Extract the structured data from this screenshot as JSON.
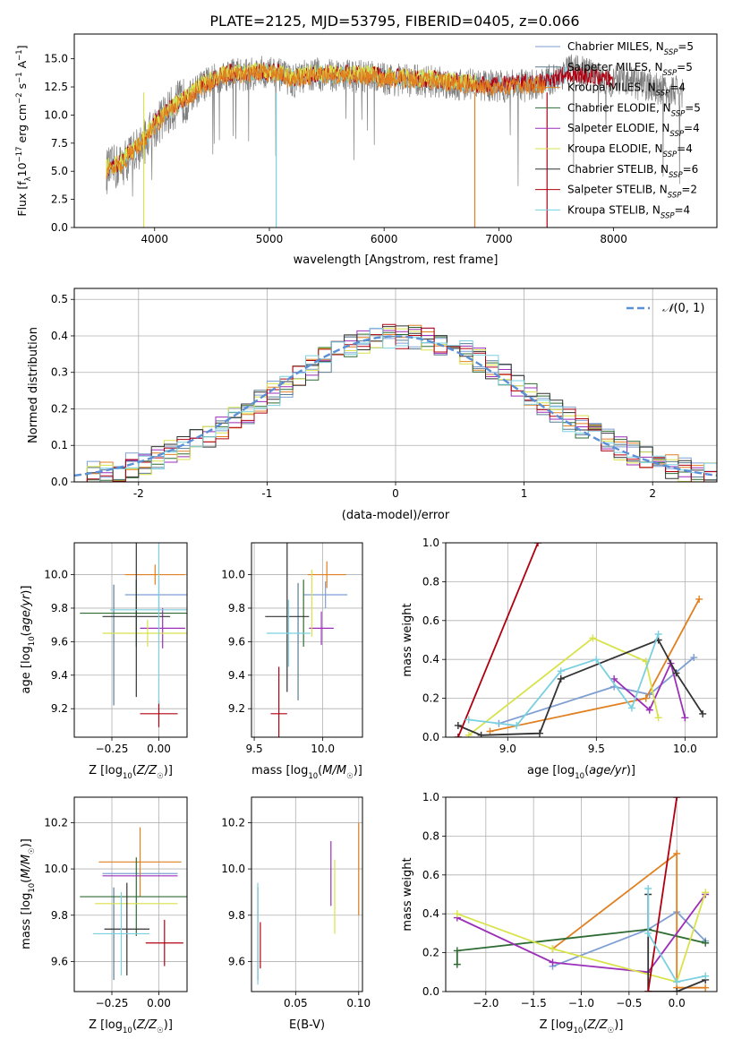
{
  "figure": {
    "title": "PLATE=2125, MJD=53795, FIBERID=0405, z=0.066"
  },
  "series_colors": {
    "Chabrier MILES": "#7f9fd3",
    "Salpeter MILES": "#5a7d92",
    "Kroupa MILES": "#e08020",
    "Chabrier ELODIE": "#2e6b33",
    "Salpeter ELODIE": "#9c2fb8",
    "Kroupa ELODIE": "#d8e24a",
    "Chabrier STELIB": "#333333",
    "Salpeter STELIB": "#b00010",
    "Kroupa STELIB": "#7ad0e0"
  },
  "chart_data": [
    {
      "id": "spectrum",
      "type": "line",
      "title": "PLATE=2125, MJD=53795, FIBERID=0405, z=0.066",
      "xlabel": "wavelength [Angstrom, rest frame]",
      "ylabel": "Flux [f_λ10^{-17} erg cm^{-2} s^{-1} A^{-1}]",
      "xlim": [
        3300,
        8900
      ],
      "ylim": [
        0,
        17.2
      ],
      "xticks": [
        4000,
        5000,
        6000,
        7000,
        8000
      ],
      "yticks": [
        0.0,
        2.5,
        5.0,
        7.5,
        10.0,
        12.5,
        15.0
      ],
      "legend_position": "top-right",
      "legend": [
        {
          "label": "Chabrier MILES, N_SSP=5",
          "text": "Chabrier MILES, N",
          "sub": "SSP",
          "tail": "=5"
        },
        {
          "label": "Salpeter MILES, N_SSP=5",
          "text": "Salpeter MILES, N",
          "sub": "SSP",
          "tail": "=5"
        },
        {
          "label": "Kroupa MILES, N_SSP=4",
          "text": "Kroupa MILES, N",
          "sub": "SSP",
          "tail": "=4"
        },
        {
          "label": "Chabrier ELODIE, N_SSP=5",
          "text": "Chabrier ELODIE, N",
          "sub": "SSP",
          "tail": "=5"
        },
        {
          "label": "Salpeter ELODIE, N_SSP=4",
          "text": "Salpeter ELODIE, N",
          "sub": "SSP",
          "tail": "=4"
        },
        {
          "label": "Kroupa ELODIE, N_SSP=4",
          "text": "Kroupa ELODIE, N",
          "sub": "SSP",
          "tail": "=4"
        },
        {
          "label": "Chabrier STELIB, N_SSP=6",
          "text": "Chabrier STELIB, N",
          "sub": "SSP",
          "tail": "=6"
        },
        {
          "label": "Salpeter STELIB, N_SSP=2",
          "text": "Salpeter STELIB, N",
          "sub": "SSP",
          "tail": "=2"
        },
        {
          "label": "Kroupa STELIB, N_SSP=4",
          "text": "Kroupa STELIB, N",
          "sub": "SSP",
          "tail": "=4"
        }
      ],
      "observed_envelope": {
        "x": [
          3580,
          3700,
          3800,
          3900,
          4000,
          4100,
          4200,
          4300,
          4400,
          4500,
          4600,
          4700,
          4800,
          4900,
          5000,
          5100,
          5200,
          5300,
          5400,
          5500,
          5600,
          5700,
          5800,
          5900,
          6000,
          6200,
          6400,
          6600,
          6800,
          7000,
          7200,
          7400,
          7600,
          7800,
          8000,
          8200,
          8400,
          8600
        ],
        "y": [
          5.0,
          5.5,
          6.5,
          7.5,
          9.0,
          10.0,
          11.0,
          11.5,
          12.5,
          13.0,
          13.5,
          13.8,
          13.5,
          13.8,
          13.8,
          13.5,
          13.0,
          13.4,
          13.6,
          13.5,
          13.6,
          13.5,
          13.4,
          13.4,
          13.2,
          13.1,
          13.0,
          12.8,
          12.7,
          12.5,
          12.6,
          12.8,
          14.0,
          13.6,
          13.0,
          12.8,
          12.3,
          12.0
        ]
      },
      "model_envelope": {
        "x": [
          3580,
          3700,
          3800,
          3900,
          4000,
          4100,
          4200,
          4300,
          4400,
          4500,
          4600,
          4700,
          4800,
          4900,
          5000,
          5100,
          5200,
          5300,
          5400,
          5500,
          5600,
          5700,
          5800,
          5900,
          6000,
          6200,
          6400,
          6600,
          6800,
          7000,
          7200,
          7400
        ],
        "y": [
          5.2,
          5.6,
          6.8,
          7.6,
          9.2,
          10.2,
          11.0,
          11.6,
          12.6,
          13.0,
          13.6,
          13.7,
          13.6,
          13.8,
          13.8,
          13.6,
          13.2,
          13.4,
          13.6,
          13.6,
          13.5,
          13.6,
          13.5,
          13.5,
          13.3,
          13.2,
          13.1,
          12.9,
          12.7,
          12.6,
          12.7,
          12.8
        ]
      }
    },
    {
      "id": "residual_histogram",
      "type": "bar",
      "xlabel": "(data-model)/error",
      "ylabel": "Normed distribution",
      "xlim": [
        -2.5,
        2.5
      ],
      "ylim": [
        0,
        0.53
      ],
      "xticks": [
        -2,
        -1,
        0,
        1,
        2
      ],
      "yticks": [
        0.0,
        0.1,
        0.2,
        0.3,
        0.4,
        0.5
      ],
      "reference_curve": {
        "name": "N(0,1)",
        "mu": 0,
        "sigma": 1
      },
      "bin_edges_start": -2.5,
      "bin_width": 0.1
    },
    {
      "id": "age_vs_Z",
      "type": "scatter",
      "xlabel": "Z [log10(Z/Z☉)]",
      "ylabel": "age  [log10(age/yr)]",
      "xlim": [
        -0.45,
        0.15
      ],
      "ylim": [
        9.03,
        10.19
      ],
      "xticks": [
        -0.25,
        0.0
      ],
      "yticks": [
        9.2,
        9.4,
        9.6,
        9.8,
        10.0
      ],
      "points": [
        {
          "series": "Chabrier MILES",
          "x": 0.0,
          "y": 9.88,
          "xerr": 0.18,
          "yerr": 0.1
        },
        {
          "series": "Salpeter MILES",
          "x": -0.24,
          "y": 9.58,
          "xerr": 0.0,
          "yerr": 0.36
        },
        {
          "series": "Kroupa MILES",
          "x": -0.02,
          "y": 10.0,
          "xerr": 0.16,
          "yerr": 0.06
        },
        {
          "series": "Chabrier ELODIE",
          "x": -0.12,
          "y": 9.77,
          "xerr": 0.3,
          "yerr": 0.2
        },
        {
          "series": "Salpeter ELODIE",
          "x": 0.02,
          "y": 9.68,
          "xerr": 0.12,
          "yerr": 0.12
        },
        {
          "series": "Kroupa ELODIE",
          "x": -0.06,
          "y": 9.65,
          "xerr": 0.24,
          "yerr": 0.08
        },
        {
          "series": "Chabrier STELIB",
          "x": -0.12,
          "y": 9.75,
          "xerr": 0.18,
          "yerr": 0.48
        },
        {
          "series": "Salpeter STELIB",
          "x": 0.0,
          "y": 9.17,
          "xerr": 0.1,
          "yerr": 0.08
        },
        {
          "series": "Kroupa STELIB",
          "x": 0.0,
          "y": 9.79,
          "xerr": 0.26,
          "yerr": 0.56
        }
      ]
    },
    {
      "id": "age_vs_mass",
      "type": "scatter",
      "xlabel": "mass [log10(M/M☉)]",
      "ylabel": "",
      "xlim": [
        9.48,
        10.29
      ],
      "ylim": [
        9.03,
        10.19
      ],
      "xticks": [
        9.5,
        10.0
      ],
      "yticks": [
        9.2,
        9.4,
        9.6,
        9.8,
        10.0
      ],
      "points": [
        {
          "series": "Chabrier MILES",
          "x": 10.02,
          "y": 9.88,
          "xerr": 0.16,
          "yerr": 0.08
        },
        {
          "series": "Salpeter MILES",
          "x": 9.82,
          "y": 9.6,
          "xerr": 0.0,
          "yerr": 0.35
        },
        {
          "series": "Kroupa MILES",
          "x": 10.03,
          "y": 10.0,
          "xerr": 0.14,
          "yerr": 0.08
        },
        {
          "series": "Chabrier ELODIE",
          "x": 9.86,
          "y": 9.77,
          "xerr": 0.0,
          "yerr": 0.2
        },
        {
          "series": "Salpeter ELODIE",
          "x": 9.99,
          "y": 9.68,
          "xerr": 0.09,
          "yerr": 0.1
        },
        {
          "series": "Kroupa ELODIE",
          "x": 9.92,
          "y": 9.83,
          "xerr": 0.0,
          "yerr": 0.2
        },
        {
          "series": "Chabrier STELIB",
          "x": 9.74,
          "y": 9.75,
          "xerr": 0.16,
          "yerr": 0.45
        },
        {
          "series": "Salpeter STELIB",
          "x": 9.68,
          "y": 9.17,
          "xerr": 0.06,
          "yerr": 0.28
        },
        {
          "series": "Kroupa STELIB",
          "x": 9.75,
          "y": 9.65,
          "xerr": 0.16,
          "yerr": 0.2
        }
      ]
    },
    {
      "id": "mass_weight_vs_age",
      "type": "line",
      "xlabel": "age  [log10(age/yr)]",
      "ylabel": "mass weight",
      "xlim": [
        8.65,
        10.18
      ],
      "ylim": [
        0,
        1.0
      ],
      "xticks": [
        9.0,
        9.5,
        10.0
      ],
      "yticks": [
        0.0,
        0.2,
        0.4,
        0.6,
        0.8,
        1.0
      ],
      "series": [
        {
          "name": "Chabrier MILES",
          "x": [
            8.95,
            9.6,
            9.8,
            10.05
          ],
          "y": [
            0.07,
            0.26,
            0.22,
            0.41
          ]
        },
        {
          "name": "Kroupa MILES",
          "x": [
            8.9,
            9.78,
            10.08
          ],
          "y": [
            0.03,
            0.2,
            0.71
          ]
        },
        {
          "name": "Salpeter ELODIE",
          "x": [
            9.6,
            9.8,
            9.92,
            10.0
          ],
          "y": [
            0.3,
            0.14,
            0.38,
            0.1
          ]
        },
        {
          "name": "Kroupa ELODIE",
          "x": [
            8.78,
            9.48,
            9.78,
            9.85
          ],
          "y": [
            0.01,
            0.51,
            0.39,
            0.1
          ]
        },
        {
          "name": "Chabrier STELIB",
          "x": [
            8.72,
            8.85,
            9.18,
            9.3,
            9.85,
            9.95,
            10.1
          ],
          "y": [
            0.06,
            0.01,
            0.02,
            0.3,
            0.5,
            0.33,
            0.12
          ]
        },
        {
          "name": "Salpeter STELIB",
          "x": [
            8.72,
            9.17
          ],
          "y": [
            0.0,
            1.0
          ]
        },
        {
          "name": "Kroupa STELIB",
          "x": [
            8.78,
            9.05,
            9.3,
            9.5,
            9.7,
            9.85
          ],
          "y": [
            0.09,
            0.06,
            0.34,
            0.4,
            0.15,
            0.53
          ]
        }
      ]
    },
    {
      "id": "mass_vs_Z",
      "type": "scatter",
      "xlabel": "Z [log10(Z/Z☉)]",
      "ylabel": "mass [log10(M/M☉)]",
      "xlim": [
        -0.45,
        0.15
      ],
      "ylim": [
        9.47,
        10.31
      ],
      "xticks": [
        -0.25,
        0.0
      ],
      "yticks": [
        9.6,
        9.8,
        10.0,
        10.2
      ],
      "points": [
        {
          "series": "Chabrier MILES",
          "x": -0.1,
          "y": 9.98,
          "xerr": 0.2,
          "yerr": 0.0
        },
        {
          "series": "Salpeter MILES",
          "x": -0.24,
          "y": 9.72,
          "xerr": 0.0,
          "yerr": 0.2
        },
        {
          "series": "Kroupa MILES",
          "x": -0.1,
          "y": 10.03,
          "xerr": 0.22,
          "yerr": 0.15
        },
        {
          "series": "Chabrier ELODIE",
          "x": -0.12,
          "y": 9.88,
          "xerr": 0.3,
          "yerr": 0.17
        },
        {
          "series": "Salpeter ELODIE",
          "x": -0.1,
          "y": 9.97,
          "xerr": 0.2,
          "yerr": 0.0
        },
        {
          "series": "Kroupa ELODIE",
          "x": -0.12,
          "y": 9.85,
          "xerr": 0.22,
          "yerr": 0.0
        },
        {
          "series": "Chabrier STELIB",
          "x": -0.17,
          "y": 9.74,
          "xerr": 0.12,
          "yerr": 0.2
        },
        {
          "series": "Salpeter STELIB",
          "x": 0.03,
          "y": 9.68,
          "xerr": 0.1,
          "yerr": 0.1
        },
        {
          "series": "Kroupa STELIB",
          "x": -0.2,
          "y": 9.72,
          "xerr": 0.15,
          "yerr": 0.18
        }
      ]
    },
    {
      "id": "mass_vs_EBV",
      "type": "scatter",
      "xlabel": "E(B-V)",
      "ylabel": "",
      "xlim": [
        0.015,
        0.103
      ],
      "ylim": [
        9.47,
        10.31
      ],
      "xticks": [
        0.05,
        0.1
      ],
      "yticks": [
        9.6,
        9.8,
        10.0,
        10.2
      ],
      "points": [
        {
          "series": "Chabrier MILES",
          "x": 0.1,
          "y": 9.8,
          "yerr": 0.0
        },
        {
          "series": "Kroupa MILES",
          "x": 0.1,
          "y": 10.0,
          "yerr": 0.2
        },
        {
          "series": "Salpeter ELODIE",
          "x": 0.078,
          "y": 9.98,
          "yerr": 0.14
        },
        {
          "series": "Kroupa ELODIE",
          "x": 0.081,
          "y": 9.88,
          "yerr": 0.16
        },
        {
          "series": "Chabrier STELIB",
          "x": 0.02,
          "y": 9.72,
          "yerr": 0.2
        },
        {
          "series": "Salpeter STELIB",
          "x": 0.022,
          "y": 9.67,
          "yerr": 0.1
        },
        {
          "series": "Kroupa STELIB",
          "x": 0.02,
          "y": 9.72,
          "yerr": 0.22
        }
      ]
    },
    {
      "id": "mass_weight_vs_Z",
      "type": "line",
      "xlabel": "Z [log10(Z/Z☉)]",
      "ylabel": "mass weight",
      "xlim": [
        -2.42,
        0.42
      ],
      "ylim": [
        0,
        1.0
      ],
      "xticks": [
        -2.0,
        -1.5,
        -1.0,
        -0.5,
        0.0
      ],
      "yticks": [
        0.0,
        0.2,
        0.4,
        0.6,
        0.8,
        1.0
      ],
      "series": [
        {
          "name": "Chabrier MILES",
          "x": [
            -1.3,
            -0.3,
            0.0,
            0.3
          ],
          "y": [
            0.13,
            0.32,
            0.41,
            0.26
          ]
        },
        {
          "name": "Kroupa MILES",
          "x": [
            -1.3,
            0.0,
            0.0,
            0.3
          ],
          "y": [
            0.22,
            0.71,
            0.02,
            0.02
          ]
        },
        {
          "name": "Chabrier ELODIE",
          "x": [
            -2.3,
            -2.3,
            -0.3,
            0.3
          ],
          "y": [
            0.14,
            0.21,
            0.32,
            0.25
          ]
        },
        {
          "name": "Salpeter ELODIE",
          "x": [
            -2.3,
            -1.3,
            -0.3,
            0.3
          ],
          "y": [
            0.38,
            0.15,
            0.1,
            0.5
          ]
        },
        {
          "name": "Kroupa ELODIE",
          "x": [
            -2.3,
            -1.3,
            0.0,
            0.3
          ],
          "y": [
            0.4,
            0.22,
            0.05,
            0.51
          ]
        },
        {
          "name": "Chabrier STELIB",
          "x": [
            -0.3,
            -0.3,
            0.0,
            0.3
          ],
          "y": [
            0.5,
            0.0,
            0.0,
            0.06
          ]
        },
        {
          "name": "Salpeter STELIB",
          "x": [
            -0.3,
            0.0
          ],
          "y": [
            0.0,
            1.0
          ]
        },
        {
          "name": "Kroupa STELIB",
          "x": [
            -0.3,
            -0.3,
            0.0,
            0.3
          ],
          "y": [
            0.53,
            0.3,
            0.05,
            0.08
          ]
        }
      ]
    }
  ]
}
